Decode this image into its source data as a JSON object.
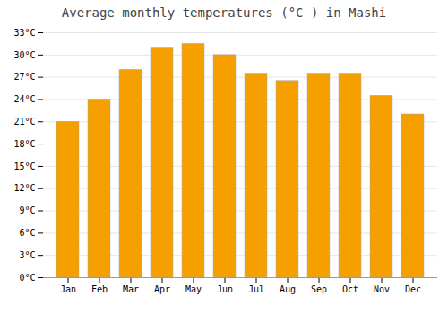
{
  "chart_data": {
    "type": "bar",
    "title": "Average monthly temperatures (°C ) in Mashi",
    "categories": [
      "Jan",
      "Feb",
      "Mar",
      "Apr",
      "May",
      "Jun",
      "Jul",
      "Aug",
      "Sep",
      "Oct",
      "Nov",
      "Dec"
    ],
    "values": [
      21,
      24,
      28,
      31,
      31.5,
      30,
      27.5,
      26.5,
      27.5,
      27.5,
      24.5,
      22
    ],
    "color": "#F5A000",
    "ylim": [
      0,
      33
    ],
    "yticks": [
      {
        "value": 0,
        "label": "0°C"
      },
      {
        "value": 3,
        "label": "3°C"
      },
      {
        "value": 6,
        "label": "6°C"
      },
      {
        "value": 9,
        "label": "9°C"
      },
      {
        "value": 12,
        "label": "12°C"
      },
      {
        "value": 15,
        "label": "15°C"
      },
      {
        "value": 18,
        "label": "18°C"
      },
      {
        "value": 21,
        "label": "21°C"
      },
      {
        "value": 24,
        "label": "24°C"
      },
      {
        "value": 27,
        "label": "27°C"
      },
      {
        "value": 30,
        "label": "30°C"
      },
      {
        "value": 33,
        "label": "33°C"
      }
    ],
    "grid": true
  }
}
